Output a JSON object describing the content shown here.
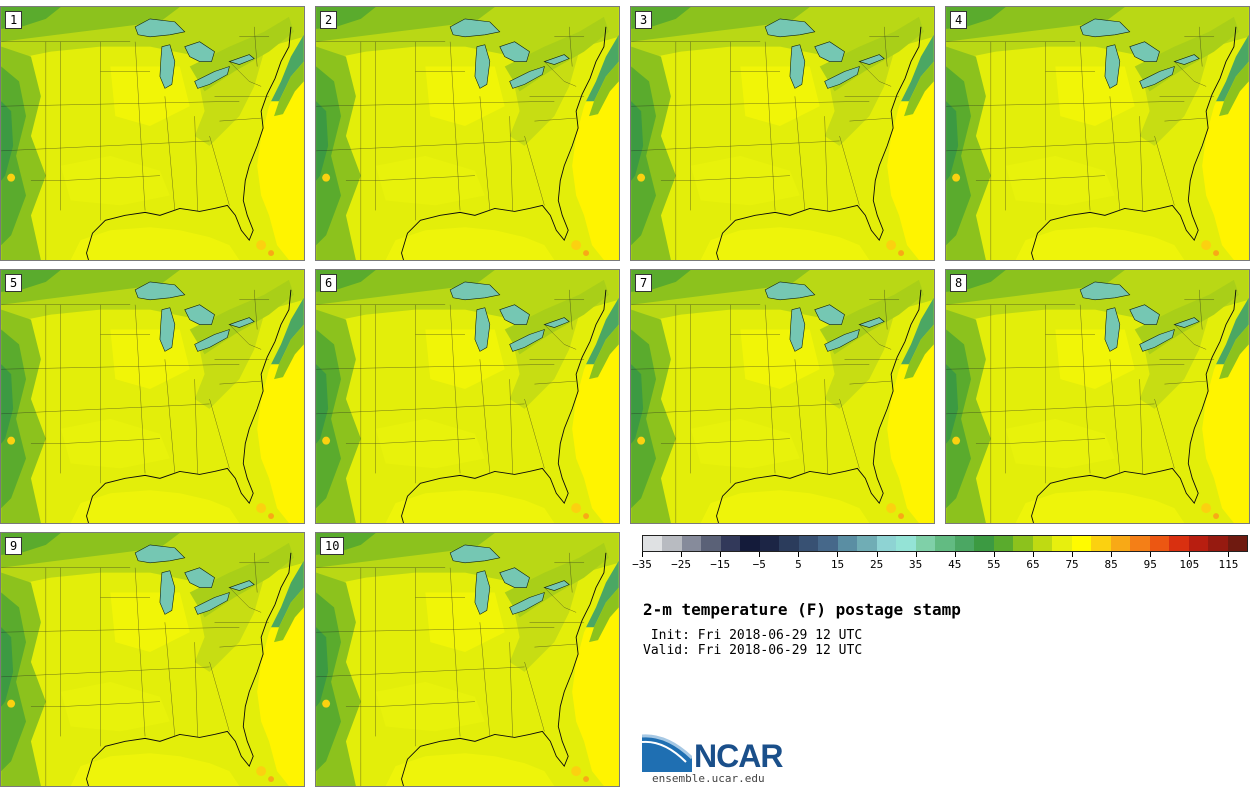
{
  "panels": [
    {
      "label": "1"
    },
    {
      "label": "2"
    },
    {
      "label": "3"
    },
    {
      "label": "4"
    },
    {
      "label": "5"
    },
    {
      "label": "6"
    },
    {
      "label": "7"
    },
    {
      "label": "8"
    },
    {
      "label": "9"
    },
    {
      "label": "10"
    }
  ],
  "colorbar": {
    "colors": [
      "#dfe1e3",
      "#b8bbc1",
      "#868b9b",
      "#5a6177",
      "#32395a",
      "#141b3a",
      "#1c2545",
      "#2b3c5c",
      "#385173",
      "#46688a",
      "#5a8ea3",
      "#70adb5",
      "#8ed3d3",
      "#94e3d6",
      "#7fd0a8",
      "#62bb82",
      "#4ba763",
      "#3c9a42",
      "#5aab2d",
      "#8cc21d",
      "#bfda12",
      "#e7ef0e",
      "#fffb00",
      "#fbd110",
      "#f8a916",
      "#f47f17",
      "#ec5712",
      "#d93010",
      "#b81e10",
      "#961a10",
      "#6f1a10"
    ],
    "tick_labels": [
      "−35",
      "−25",
      "−15",
      "−5",
      "5",
      "15",
      "25",
      "35",
      "45",
      "55",
      "65",
      "75",
      "85",
      "95",
      "105",
      "115"
    ]
  },
  "title": "2-m temperature (F) postage stamp",
  "init": " Init: Fri 2018-06-29 12 UTC",
  "valid": "Valid: Fri 2018-06-29 12 UTC",
  "logo": {
    "name": "NCAR",
    "url": "ensemble.ucar.edu"
  }
}
